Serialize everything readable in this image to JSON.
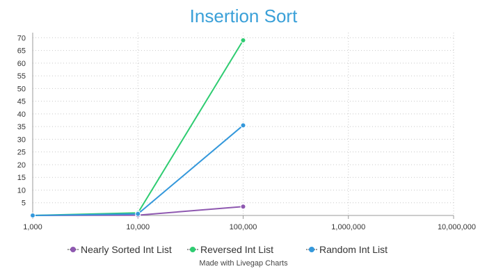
{
  "chart_data": {
    "type": "line",
    "title": "Insertion Sort",
    "xlabel": "",
    "ylabel": "",
    "x_scale": "log",
    "x": [
      1000,
      10000,
      100000
    ],
    "xticks": [
      1000,
      10000,
      100000,
      1000000,
      10000000
    ],
    "xtick_labels": [
      "1,000",
      "10,000",
      "100,000",
      "1,000,000",
      "10,000,000"
    ],
    "xlim": [
      1000,
      10000000
    ],
    "ylim": [
      0,
      72
    ],
    "yticks": [
      5,
      10,
      15,
      20,
      25,
      30,
      35,
      40,
      45,
      50,
      55,
      60,
      65,
      70
    ],
    "grid": true,
    "legend_position": "bottom",
    "series": [
      {
        "name": "Nearly Sorted Int List",
        "color": "#8e58b0",
        "values": [
          0.0,
          0.1,
          3.5
        ]
      },
      {
        "name": "Reversed Int List",
        "color": "#2ecc71",
        "values": [
          0.0,
          1.0,
          69.0
        ]
      },
      {
        "name": "Random Int List",
        "color": "#3498db",
        "values": [
          0.0,
          0.6,
          35.5
        ]
      }
    ]
  },
  "footer": {
    "credit": "Made with Livegap Charts"
  }
}
